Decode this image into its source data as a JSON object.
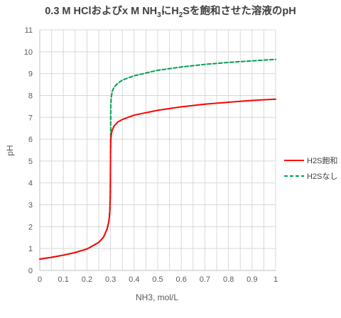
{
  "chart_data": {
    "type": "line",
    "title": {
      "pre": "0.3 M HClおよびx M NH",
      "sub1": "3",
      "mid": "にH",
      "sub2": "2",
      "post": "Sを飽和させた溶液のpH"
    },
    "xlabel": "NH3, mol/L",
    "ylabel": "pH",
    "xlim": [
      0,
      1
    ],
    "ylim": [
      0,
      11
    ],
    "xticks": [
      "0",
      "0.1",
      "0.2",
      "0.3",
      "0.4",
      "0.5",
      "0.6",
      "0.7",
      "0.8",
      "0.9",
      "1"
    ],
    "yticks": [
      "0",
      "1",
      "2",
      "3",
      "4",
      "5",
      "6",
      "7",
      "8",
      "9",
      "10",
      "11"
    ],
    "grid": "major and minor",
    "legend_position": "right",
    "series": [
      {
        "name": "H2S飽和",
        "color": "#ff0000",
        "style": "solid",
        "x": [
          0,
          0.05,
          0.1,
          0.15,
          0.2,
          0.25,
          0.27,
          0.285,
          0.293,
          0.297,
          0.299,
          0.3,
          0.301,
          0.303,
          0.307,
          0.315,
          0.33,
          0.35,
          0.4,
          0.5,
          0.6,
          0.7,
          0.8,
          0.9,
          1.0
        ],
        "y": [
          0.52,
          0.6,
          0.7,
          0.82,
          0.98,
          1.28,
          1.52,
          1.88,
          2.25,
          2.7,
          3.5,
          5.4,
          5.95,
          6.2,
          6.42,
          6.6,
          6.78,
          6.9,
          7.1,
          7.32,
          7.48,
          7.6,
          7.69,
          7.77,
          7.83
        ]
      },
      {
        "name": "H2Sなし",
        "color": "#00a050",
        "style": "dashed",
        "x": [
          0,
          0.05,
          0.1,
          0.15,
          0.2,
          0.25,
          0.27,
          0.285,
          0.293,
          0.297,
          0.299,
          0.3,
          0.301,
          0.303,
          0.307,
          0.315,
          0.33,
          0.35,
          0.4,
          0.5,
          0.6,
          0.7,
          0.8,
          0.9,
          1.0
        ],
        "y": [
          0.52,
          0.6,
          0.7,
          0.82,
          0.98,
          1.28,
          1.52,
          1.88,
          2.25,
          2.7,
          3.5,
          5.5,
          7.6,
          7.9,
          8.18,
          8.38,
          8.55,
          8.7,
          8.9,
          9.15,
          9.3,
          9.42,
          9.51,
          9.58,
          9.65
        ]
      }
    ]
  }
}
